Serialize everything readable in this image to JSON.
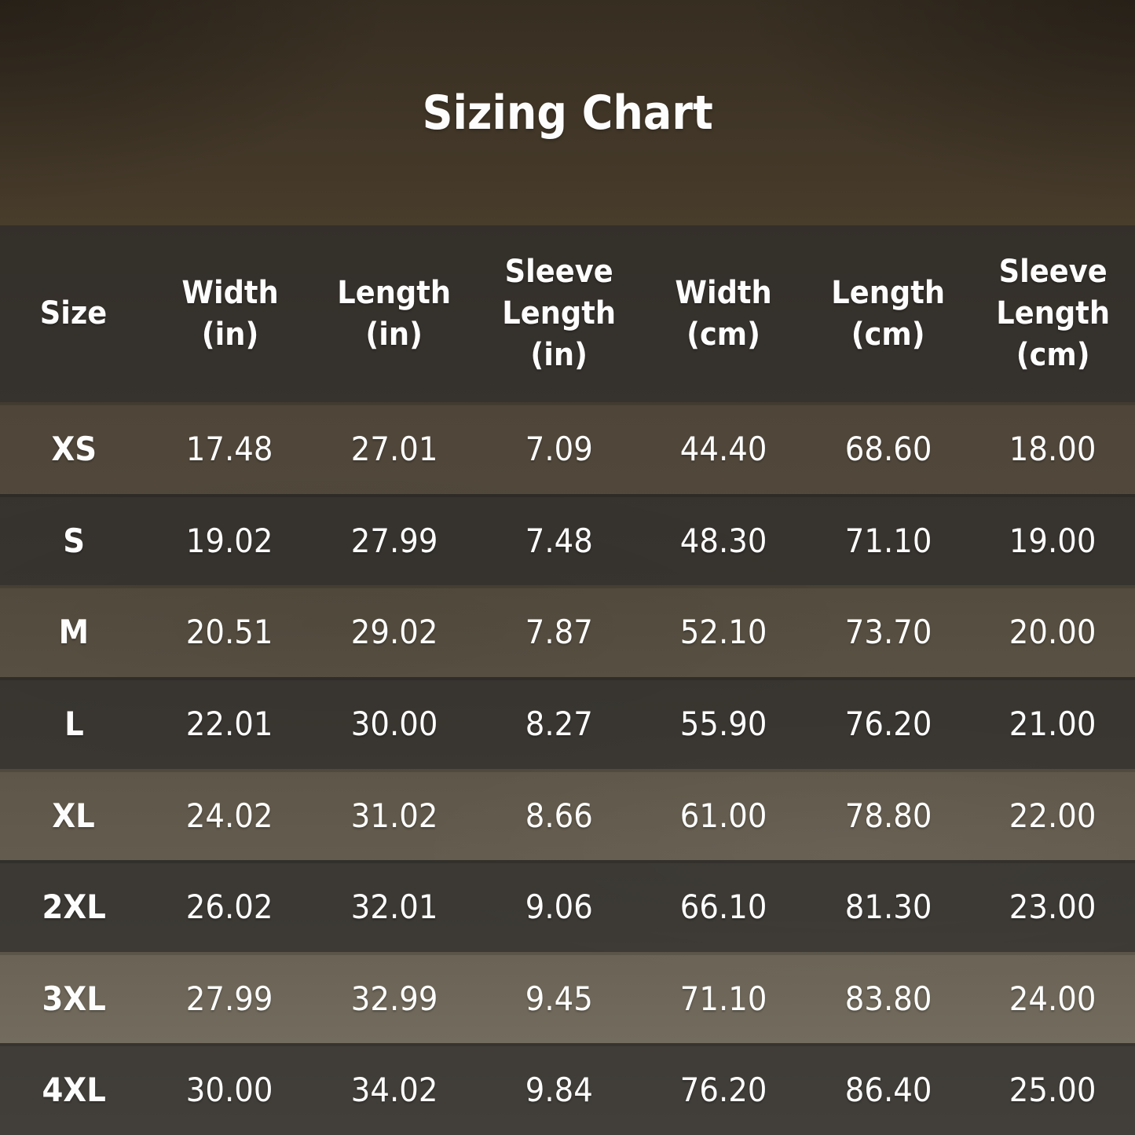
{
  "title": "Sizing Chart",
  "colors": {
    "text": "#fdfdfd",
    "bg_top": "#372e22",
    "bg_bottom": "#7a7366",
    "dark_band": "#2c2b2a",
    "dark_band_rgba": "rgba(44,43,42,0.72)"
  },
  "chart_data": {
    "type": "table",
    "title": "Sizing Chart",
    "columns": [
      "Size",
      "Width\n(in)",
      "Length\n(in)",
      "Sleeve\nLength\n(in)",
      "Width\n(cm)",
      "Length\n(cm)",
      "Sleeve\nLength\n(cm)"
    ],
    "rows": [
      [
        "XS",
        "17.48",
        "27.01",
        "7.09",
        "44.40",
        "68.60",
        "18.00"
      ],
      [
        "S",
        "19.02",
        "27.99",
        "7.48",
        "48.30",
        "71.10",
        "19.00"
      ],
      [
        "M",
        "20.51",
        "29.02",
        "7.87",
        "52.10",
        "73.70",
        "20.00"
      ],
      [
        "L",
        "22.01",
        "30.00",
        "8.27",
        "55.90",
        "76.20",
        "21.00"
      ],
      [
        "XL",
        "24.02",
        "31.02",
        "8.66",
        "61.00",
        "78.80",
        "22.00"
      ],
      [
        "2XL",
        "26.02",
        "32.01",
        "9.06",
        "66.10",
        "81.30",
        "23.00"
      ],
      [
        "3XL",
        "27.99",
        "32.99",
        "9.45",
        "71.10",
        "83.80",
        "24.00"
      ],
      [
        "4XL",
        "30.00",
        "34.02",
        "9.84",
        "76.20",
        "86.40",
        "25.00"
      ]
    ],
    "layout": {
      "row_striping": "odd rows transparent over photo, even rows dark band",
      "header_position": "top",
      "alignment": "center"
    }
  }
}
